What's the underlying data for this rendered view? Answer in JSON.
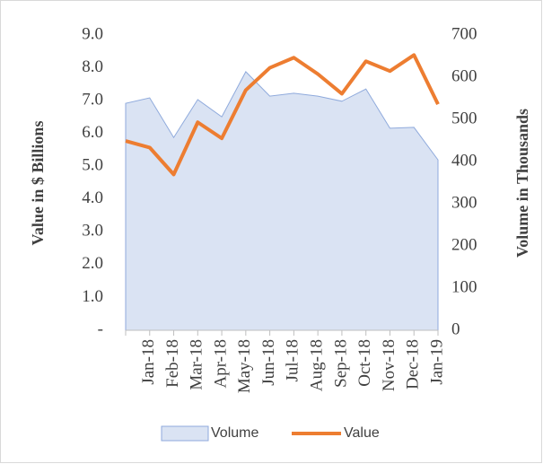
{
  "chart_data": {
    "type": "area-line",
    "categories": [
      null,
      "Jan-18",
      "Feb-18",
      "Mar-18",
      "Apr-18",
      "May-18",
      "Jun-18",
      "Jul-18",
      "Aug-18",
      "Sep-18",
      "Oct-18",
      "Nov-18",
      "Dec-18",
      "Jan-19"
    ],
    "series": [
      {
        "name": "Volume",
        "type": "area",
        "axis": "y2",
        "color": "#dae3f3",
        "stroke": "#8faadc",
        "values": [
          538,
          551,
          457,
          547,
          506,
          613,
          555,
          562,
          555,
          543,
          572,
          479,
          481,
          404
        ]
      },
      {
        "name": "Value",
        "type": "line",
        "axis": "y",
        "color": "#ed7d31",
        "values": [
          5.77,
          5.57,
          4.75,
          6.34,
          5.85,
          7.32,
          8.0,
          8.31,
          7.81,
          7.21,
          8.2,
          7.9,
          8.39,
          6.89
        ]
      }
    ],
    "ylabel": "Value in $ Billions",
    "y2label": "Volume in Thousands",
    "ylim": [
      0,
      9
    ],
    "yticks": [
      {
        "value": 0,
        "label": "-"
      },
      {
        "value": 1,
        "label": "1.0"
      },
      {
        "value": 2,
        "label": "2.0"
      },
      {
        "value": 3,
        "label": "3.0"
      },
      {
        "value": 4,
        "label": "4.0"
      },
      {
        "value": 5,
        "label": "5.0"
      },
      {
        "value": 6,
        "label": "6.0"
      },
      {
        "value": 7,
        "label": "7.0"
      },
      {
        "value": 8,
        "label": "8.0"
      },
      {
        "value": 9,
        "label": "9.0"
      }
    ],
    "y2lim": [
      0,
      700
    ],
    "y2ticks": [
      0,
      100,
      200,
      300,
      400,
      500,
      600,
      700
    ],
    "legend": "bottom"
  }
}
